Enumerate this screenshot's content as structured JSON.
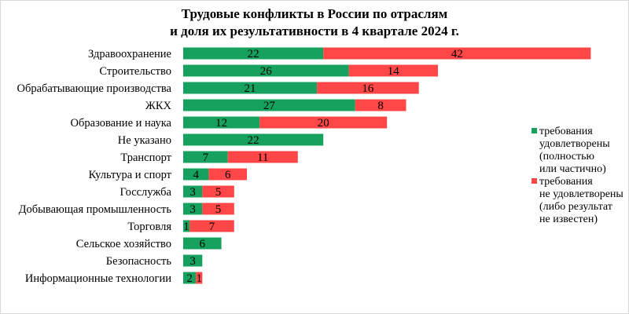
{
  "chart_data": {
    "type": "bar",
    "orientation": "horizontal",
    "stacked": true,
    "title": [
      "Трудовые конфликты в России по отраслям",
      "и доля их результативности в 4 квартале 2024 г."
    ],
    "categories": [
      "Здравоохранение",
      "Строительство",
      "Обрабатывающие производства",
      "ЖКХ",
      "Образование и наука",
      "Не указано",
      "Транспорт",
      "Культура и спорт",
      "Госслужба",
      "Добывающая промышленность",
      "Торговля",
      "Сельское хозяйство",
      "Безопасность",
      "Информационные технологии"
    ],
    "series": [
      {
        "name": "требования удовлетворены (полностью или частично)",
        "legend_lines": [
          "требования",
          "удовлетворены",
          "(полностью",
          "или частично)"
        ],
        "color": "#16a25e",
        "values": [
          22,
          26,
          21,
          27,
          12,
          22,
          7,
          4,
          3,
          3,
          1,
          6,
          3,
          2
        ]
      },
      {
        "name": "требования не удовлетворены (либо результат не известен)",
        "legend_lines": [
          "требования",
          "не удовлетворены",
          "(либо результат",
          "не известен)"
        ],
        "color": "#ff4747",
        "values": [
          42,
          14,
          16,
          8,
          20,
          0,
          11,
          6,
          5,
          5,
          7,
          0,
          0,
          1
        ]
      }
    ],
    "legend_position": "right",
    "grid": false
  }
}
